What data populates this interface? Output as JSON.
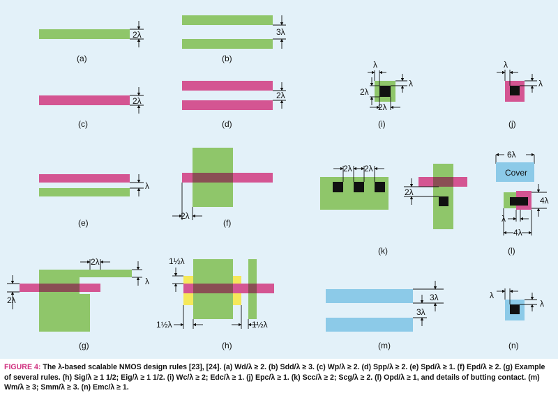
{
  "colors": {
    "panel_bg": "#e3f1f9",
    "diffusion_green": "#8fc66a",
    "poly_pink": "#d45592",
    "overlap_brown": "#8a4f54",
    "metal_blue": "#8ccae8",
    "contact_black": "#111111",
    "implant_yellow": "#f5e85a",
    "figure_label": "#d0307f"
  },
  "panel_labels": {
    "a": "(a)",
    "b": "(b)",
    "c": "(c)",
    "d": "(d)",
    "e": "(e)",
    "f": "(f)",
    "g": "(g)",
    "h": "(h)",
    "i": "(i)",
    "j": "(j)",
    "k": "(k)",
    "l": "(l)",
    "m": "(m)",
    "n": "(n)"
  },
  "dimensions": {
    "two_lambda": "2λ",
    "three_lambda": "3λ",
    "lambda": "λ",
    "one_half_lambda": "1½λ",
    "six_lambda": "6λ",
    "four_lambda": "4λ"
  },
  "cover_label": "Cover",
  "caption": {
    "figure_label": "FIGURE 4:",
    "text": "The λ-based scalable NMOS design rules [23], [24]. (a) Wd/λ ≥ 2. (b) Sdd/λ ≥ 3. (c) Wp/λ ≥ 2. (d) Spp/λ ≥ 2. (e) Spd/λ ≥ 1. (f) Epd/λ ≥ 2. (g) Example of several rules. (h) Sig/λ ≥ 1 1/2; Eig/λ ≥ 1 1/2. (i) Wc/λ ≥ 2; Edc/λ ≥ 1. (j) Epc/λ ≥ 1. (k) Scc/λ ≥ 2; Scg/λ ≥ 2. (l) Opd/λ ≥ 1, and details of butting contact. (m) Wm/λ ≥ 3; Smm/λ ≥ 3. (n) Emc/λ ≥ 1."
  }
}
